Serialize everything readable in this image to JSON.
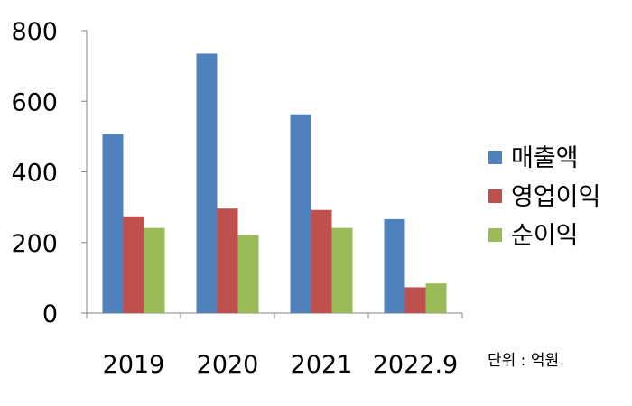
{
  "chart_data": {
    "type": "bar",
    "title": "",
    "xlabel": "",
    "ylabel": "",
    "categories": [
      "2019",
      "2020",
      "2021",
      "2022.9"
    ],
    "series": [
      {
        "name": "매출액",
        "values": [
          507,
          735,
          563,
          266
        ],
        "color": "#4f81bd"
      },
      {
        "name": "영업이익",
        "values": [
          274,
          296,
          292,
          73
        ],
        "color": "#c0504d"
      },
      {
        "name": "순이익",
        "values": [
          241,
          221,
          241,
          84
        ],
        "color": "#9bbb59"
      }
    ],
    "ylim": [
      0,
      800
    ],
    "yticks": [
      "0",
      "200",
      "400",
      "600",
      "800"
    ],
    "grid": false,
    "legend": "right",
    "unit_label": "단위 : 억원"
  }
}
